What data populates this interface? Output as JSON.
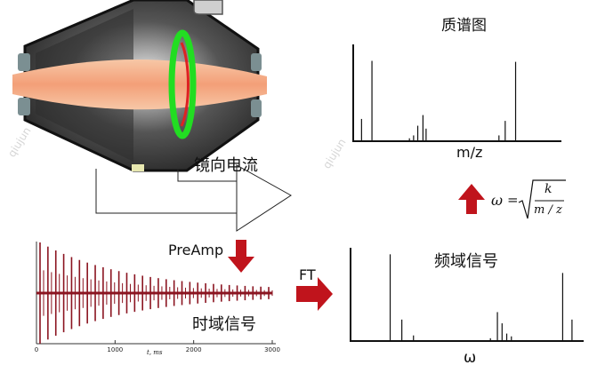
{
  "labels": {
    "mass_spectrum_title": "质谱图",
    "mass_axis": "m/z",
    "image_current": "镜向电流",
    "preamp": "PreAmp",
    "ft": "FT",
    "frequency_signal": "频域信号",
    "omega_axis": "ω",
    "time_signal": "时域信号",
    "time_axis_label": "t, ms",
    "watermark_left": "qiujun",
    "watermark_right": "qiujun"
  },
  "formula": {
    "lhs": "ω",
    "equals": "=",
    "numerator": "k",
    "denominator": "m / z"
  },
  "colors": {
    "arrow": "#c0141c",
    "signal": "#8b1420",
    "ring_green": "#22dd22",
    "ring_red": "#dd2222",
    "beam": "#f4b08c",
    "cell_dark": "#3a3a3a"
  },
  "chart_data": [
    {
      "type": "bar",
      "title": "质谱图",
      "xlabel": "m/z",
      "ylabel": "",
      "values": [
        0.23,
        0.83,
        0.03,
        0.06,
        0.16,
        0.27,
        0.13,
        0.06,
        0.21,
        0.82
      ],
      "positions": [
        0.04,
        0.09,
        0.27,
        0.29,
        0.31,
        0.335,
        0.35,
        0.7,
        0.73,
        0.78
      ]
    },
    {
      "type": "bar",
      "title": "频域信号",
      "xlabel": "ω",
      "ylabel": "",
      "values": [
        0.93,
        0.23,
        0.06,
        0.03,
        0.31,
        0.19,
        0.08,
        0.05,
        0.73,
        0.23
      ],
      "positions": [
        0.17,
        0.22,
        0.27,
        0.6,
        0.63,
        0.65,
        0.67,
        0.69,
        0.91,
        0.95
      ]
    },
    {
      "type": "line",
      "title": "时域信号",
      "xlabel": "t, ms",
      "ylabel": "",
      "x_ticks": [
        0,
        1000,
        2000,
        3000
      ],
      "xlim": [
        0,
        3000
      ]
    }
  ]
}
